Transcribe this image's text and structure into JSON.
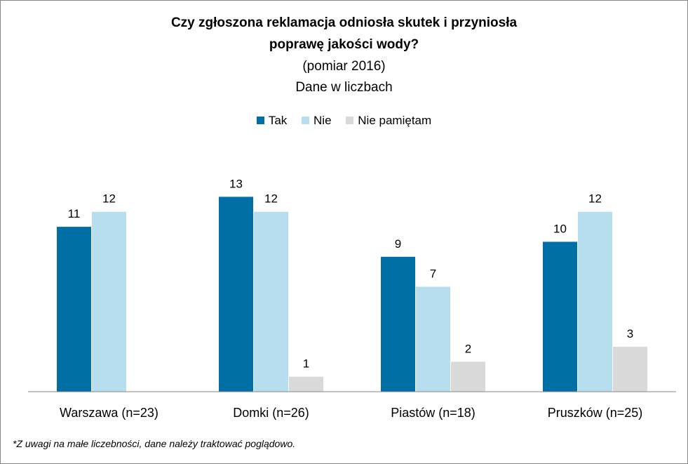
{
  "chart_data": {
    "type": "bar",
    "title": "Czy zgłoszona reklamacja odniosła skutek i przyniosła",
    "title_line2": "poprawę jakości wody?",
    "subtitle": "(pomiar 2016)",
    "subtitle2": "Dane w liczbach",
    "categories": [
      "Warszawa (n=23)",
      "Domki (n=26)",
      "Piastów (n=18)",
      "Pruszków (n=25)"
    ],
    "series": [
      {
        "name": "Tak",
        "color": "#006FA6",
        "values": [
          11,
          13,
          9,
          10
        ]
      },
      {
        "name": "Nie",
        "color": "#B7DEEE",
        "values": [
          12,
          12,
          7,
          12
        ]
      },
      {
        "name": "Nie pamiętam",
        "color": "#D9D9D9",
        "values": [
          0,
          1,
          2,
          3
        ]
      }
    ],
    "ylim": [
      0,
      14
    ],
    "xlabel": "",
    "ylabel": "",
    "legend_position": "top-center"
  },
  "footnote": "*Z uwagi na małe liczebności, dane należy traktować poglądowo."
}
